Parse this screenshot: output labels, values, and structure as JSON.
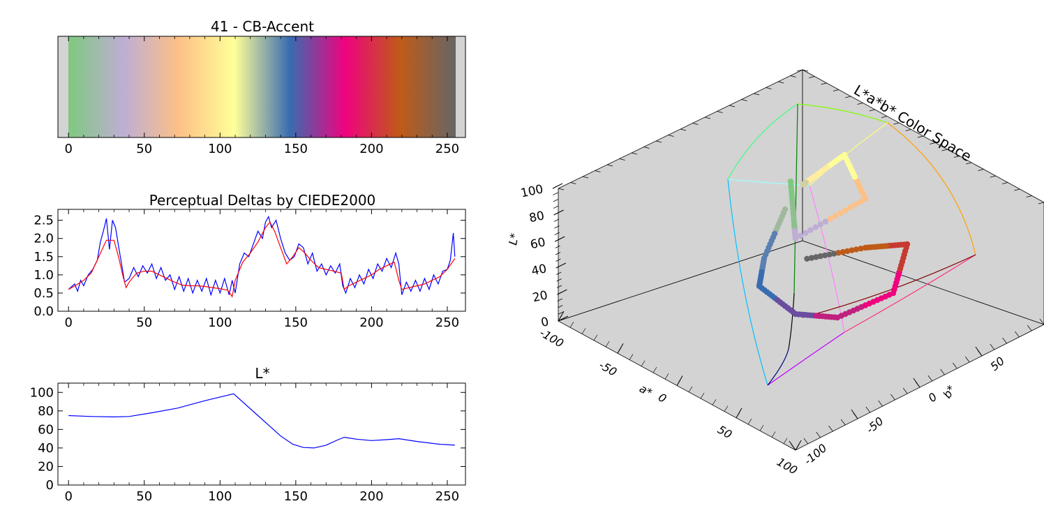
{
  "colors": {
    "accent_stops": [
      "#7fc97f",
      "#beaed4",
      "#fdc086",
      "#ffff99",
      "#386cb0",
      "#f0027f",
      "#bf5b17",
      "#666666"
    ],
    "line_blue": "#0000ff",
    "line_red": "#ff0000",
    "cube_face": "#d3d3d3",
    "pad_gray": "#d3d3d3"
  },
  "chart_data": [
    {
      "type": "colorbar",
      "title": "41 - CB-Accent",
      "xlim": [
        -7,
        262
      ],
      "xticks": [
        0,
        50,
        100,
        150,
        200,
        250
      ]
    },
    {
      "type": "line",
      "title": "Perceptual Deltas by CIEDE2000",
      "xlim": [
        -7,
        262
      ],
      "ylim": [
        0,
        2.8
      ],
      "xticks": [
        0,
        50,
        100,
        150,
        200,
        250
      ],
      "yticks": [
        0,
        0.5,
        1,
        1.5,
        2,
        2.5
      ],
      "ytick_labels": [
        "0.0",
        "0.5",
        "1.0",
        "1.5",
        "2.0",
        "2.5"
      ],
      "series": [
        {
          "color": "blue",
          "x": [
            0,
            4,
            6,
            8,
            10,
            13,
            16,
            19,
            21,
            23,
            25,
            27,
            29,
            31,
            33,
            35,
            37,
            40,
            43,
            46,
            49,
            52,
            55,
            58,
            61,
            64,
            67,
            70,
            73,
            76,
            79,
            82,
            85,
            88,
            91,
            94,
            97,
            100,
            103,
            106,
            108,
            110,
            113,
            116,
            119,
            122,
            125,
            128,
            130,
            132,
            134,
            137,
            140,
            143,
            146,
            149,
            152,
            155,
            158,
            161,
            164,
            167,
            170,
            173,
            176,
            179,
            181,
            183,
            186,
            189,
            192,
            195,
            198,
            201,
            204,
            207,
            210,
            213,
            216,
            218,
            220,
            223,
            226,
            229,
            232,
            235,
            238,
            241,
            244,
            247,
            250,
            252,
            254,
            255
          ],
          "values": [
            0.6,
            0.75,
            0.55,
            0.85,
            0.7,
            1.0,
            1.15,
            1.4,
            1.9,
            2.2,
            2.55,
            1.7,
            2.5,
            2.3,
            1.8,
            1.3,
            0.8,
            0.9,
            1.2,
            0.95,
            1.25,
            1.05,
            1.3,
            0.9,
            1.2,
            0.85,
            1.0,
            0.6,
            0.95,
            0.55,
            0.9,
            0.5,
            0.85,
            0.55,
            0.9,
            0.45,
            0.85,
            0.5,
            0.9,
            0.45,
            0.85,
            0.5,
            1.3,
            1.6,
            1.5,
            1.85,
            2.2,
            2.0,
            2.45,
            2.6,
            2.3,
            2.5,
            2.0,
            1.6,
            1.4,
            1.5,
            1.85,
            1.75,
            1.3,
            1.6,
            1.1,
            1.3,
            1.0,
            1.25,
            1.05,
            1.3,
            0.7,
            0.5,
            0.9,
            0.65,
            1.0,
            0.75,
            1.15,
            0.9,
            1.3,
            1.1,
            1.45,
            1.2,
            1.6,
            1.3,
            0.45,
            0.8,
            0.55,
            0.85,
            0.55,
            0.9,
            0.6,
            1.0,
            0.75,
            1.1,
            1.15,
            1.4,
            2.15,
            1.5
          ]
        },
        {
          "color": "red",
          "x": [
            0,
            5,
            10,
            15,
            20,
            25,
            30,
            33,
            36,
            38,
            40,
            45,
            50,
            55,
            60,
            65,
            70,
            75,
            80,
            85,
            90,
            95,
            100,
            105,
            108,
            110,
            115,
            120,
            125,
            130,
            133,
            136,
            140,
            144,
            148,
            152,
            156,
            160,
            165,
            170,
            175,
            180,
            182,
            185,
            190,
            195,
            200,
            205,
            210,
            215,
            218,
            220,
            225,
            230,
            235,
            240,
            245,
            250,
            255
          ],
          "values": [
            0.6,
            0.72,
            0.85,
            1.05,
            1.5,
            1.95,
            1.95,
            1.5,
            0.95,
            0.65,
            0.8,
            1.05,
            1.1,
            1.1,
            1.0,
            0.9,
            0.8,
            0.72,
            0.7,
            0.7,
            0.68,
            0.65,
            0.62,
            0.58,
            0.4,
            0.85,
            1.35,
            1.6,
            1.9,
            2.3,
            2.45,
            2.2,
            1.75,
            1.3,
            1.5,
            1.75,
            1.6,
            1.4,
            1.2,
            1.15,
            1.1,
            1.05,
            0.6,
            0.7,
            0.8,
            0.9,
            1.0,
            1.15,
            1.25,
            1.35,
            0.85,
            0.6,
            0.65,
            0.7,
            0.75,
            0.85,
            0.95,
            1.15,
            1.45
          ]
        }
      ]
    },
    {
      "type": "line",
      "title": "L*",
      "xlim": [
        -7,
        262
      ],
      "ylim": [
        0,
        110
      ],
      "xticks": [
        0,
        50,
        100,
        150,
        200,
        250
      ],
      "yticks": [
        0,
        20,
        40,
        60,
        80,
        100
      ],
      "series": [
        {
          "color": "blue",
          "x": [
            0,
            15,
            30,
            40,
            55,
            72,
            90,
            109,
            125,
            140,
            148,
            155,
            162,
            170,
            178,
            182,
            190,
            200,
            210,
            218,
            230,
            245,
            255
          ],
          "values": [
            75,
            74,
            73.5,
            74,
            78,
            83,
            91,
            98.5,
            75,
            53,
            44,
            40.5,
            40,
            43,
            49,
            51.5,
            49.5,
            48,
            49,
            50,
            47,
            44,
            43
          ]
        }
      ]
    },
    {
      "type": "scatter3d",
      "title": "L*a*b* Color Space",
      "zlabel": "L*",
      "xlabel": "a*",
      "ylabel": "b*",
      "zticks": [
        0,
        20,
        40,
        60,
        80,
        100
      ],
      "xticks": [
        -100,
        -50,
        0,
        50,
        100
      ],
      "yticks": [
        -100,
        -50,
        0,
        50
      ]
    }
  ]
}
